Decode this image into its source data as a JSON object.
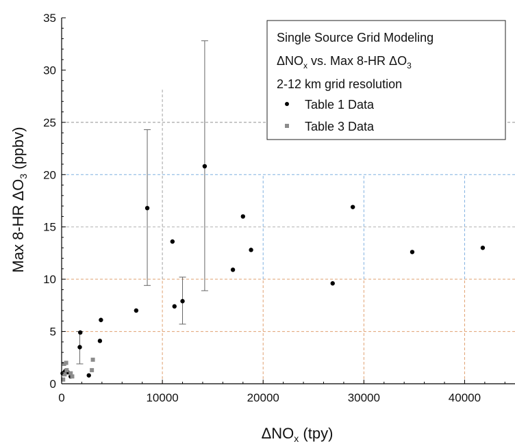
{
  "chart_data": {
    "type": "scatter",
    "xlabel": {
      "prefix": "ΔNO",
      "sub": "x",
      "suffix": " (tpy)"
    },
    "ylabel": {
      "prefix": "Max 8-HR ΔO",
      "sub": "3",
      "suffix": " (ppbv)"
    },
    "xlim": [
      0,
      45000
    ],
    "ylim": [
      0,
      35
    ],
    "xticks": [
      0,
      10000,
      20000,
      30000,
      40000
    ],
    "xtick_labels": [
      "0",
      "10000",
      "20000",
      "30000",
      "40000"
    ],
    "yticks": [
      0,
      5,
      10,
      15,
      20,
      25,
      30,
      35
    ],
    "ytick_labels": [
      "0",
      "5",
      "10",
      "15",
      "20",
      "25",
      "30",
      "35"
    ],
    "legend": {
      "position": "top-right",
      "title_lines": [
        {
          "text": "Single Source Grid Modeling"
        },
        {
          "text": "ΔNO",
          "sub": "x",
          "after": " vs. Max 8-HR ΔO",
          "sub2": "3"
        },
        {
          "text": "2-12 km grid resolution"
        }
      ]
    },
    "reference_lines": [
      {
        "orientation": "horizontal",
        "y": 5,
        "color": "#e0a070"
      },
      {
        "orientation": "horizontal",
        "y": 10,
        "color": "#e0a070"
      },
      {
        "orientation": "horizontal",
        "y": 15,
        "color": "#b0b0b0"
      },
      {
        "orientation": "horizontal",
        "y": 20,
        "color": "#7fb0e0"
      },
      {
        "orientation": "horizontal",
        "y": 25,
        "color": "#909090"
      },
      {
        "orientation": "vertical",
        "x": 10000,
        "y_from": 0,
        "y_to": 5,
        "color": "#e0a070"
      },
      {
        "orientation": "vertical",
        "x": 10000,
        "y_from": 5,
        "y_to": 10,
        "color": "#e0a070"
      },
      {
        "orientation": "vertical",
        "x": 10000,
        "y_from": 10,
        "y_to": 28.2,
        "color": "#a0a0a0"
      },
      {
        "orientation": "vertical",
        "x": 20000,
        "y_from": 0,
        "y_to": 10,
        "color": "#e0a070"
      },
      {
        "orientation": "vertical",
        "x": 20000,
        "y_from": 10,
        "y_to": 20,
        "color": "#7fb0e0"
      },
      {
        "orientation": "vertical",
        "x": 30000,
        "y_from": 0,
        "y_to": 10,
        "color": "#e0a070"
      },
      {
        "orientation": "vertical",
        "x": 30000,
        "y_from": 10,
        "y_to": 20,
        "color": "#7fb0e0"
      },
      {
        "orientation": "vertical",
        "x": 40000,
        "y_from": 0,
        "y_to": 10,
        "color": "#e0a070"
      },
      {
        "orientation": "vertical",
        "x": 40000,
        "y_from": 10,
        "y_to": 20,
        "color": "#7fb0e0"
      }
    ],
    "series": [
      {
        "name": "Table 1 Data",
        "marker": "circle",
        "color": "#000000",
        "points": [
          {
            "x": 100,
            "y": 1.0
          },
          {
            "x": 350,
            "y": 1.2
          },
          {
            "x": 600,
            "y": 1.1
          },
          {
            "x": 900,
            "y": 0.7
          },
          {
            "x": 1800,
            "y": 3.5,
            "err_low": 1.9,
            "err_high": 5.0
          },
          {
            "x": 1850,
            "y": 4.9
          },
          {
            "x": 2700,
            "y": 0.8
          },
          {
            "x": 3800,
            "y": 4.1
          },
          {
            "x": 3900,
            "y": 6.1
          },
          {
            "x": 7400,
            "y": 7.0
          },
          {
            "x": 8500,
            "y": 16.8,
            "err_low": 9.4,
            "err_high": 24.3
          },
          {
            "x": 11000,
            "y": 13.6
          },
          {
            "x": 11200,
            "y": 7.4
          },
          {
            "x": 12000,
            "y": 7.9,
            "err_low": 5.7,
            "err_high": 10.2
          },
          {
            "x": 14200,
            "y": 20.8,
            "err_low": 8.9,
            "err_high": 32.8
          },
          {
            "x": 17000,
            "y": 10.9
          },
          {
            "x": 18000,
            "y": 16.0
          },
          {
            "x": 18800,
            "y": 12.8
          },
          {
            "x": 26900,
            "y": 9.6
          },
          {
            "x": 28900,
            "y": 16.9
          },
          {
            "x": 34800,
            "y": 12.6
          },
          {
            "x": 41800,
            "y": 13.0
          }
        ]
      },
      {
        "name": "Table 3 Data",
        "marker": "square",
        "color": "#8c8c8c",
        "points": [
          {
            "x": 150,
            "y": 0.4
          },
          {
            "x": 250,
            "y": 1.9
          },
          {
            "x": 300,
            "y": 0.9
          },
          {
            "x": 450,
            "y": 2.0
          },
          {
            "x": 500,
            "y": 1.3
          },
          {
            "x": 900,
            "y": 1.0
          },
          {
            "x": 1050,
            "y": 0.7
          },
          {
            "x": 3000,
            "y": 1.3
          },
          {
            "x": 3100,
            "y": 2.3
          }
        ]
      }
    ]
  }
}
